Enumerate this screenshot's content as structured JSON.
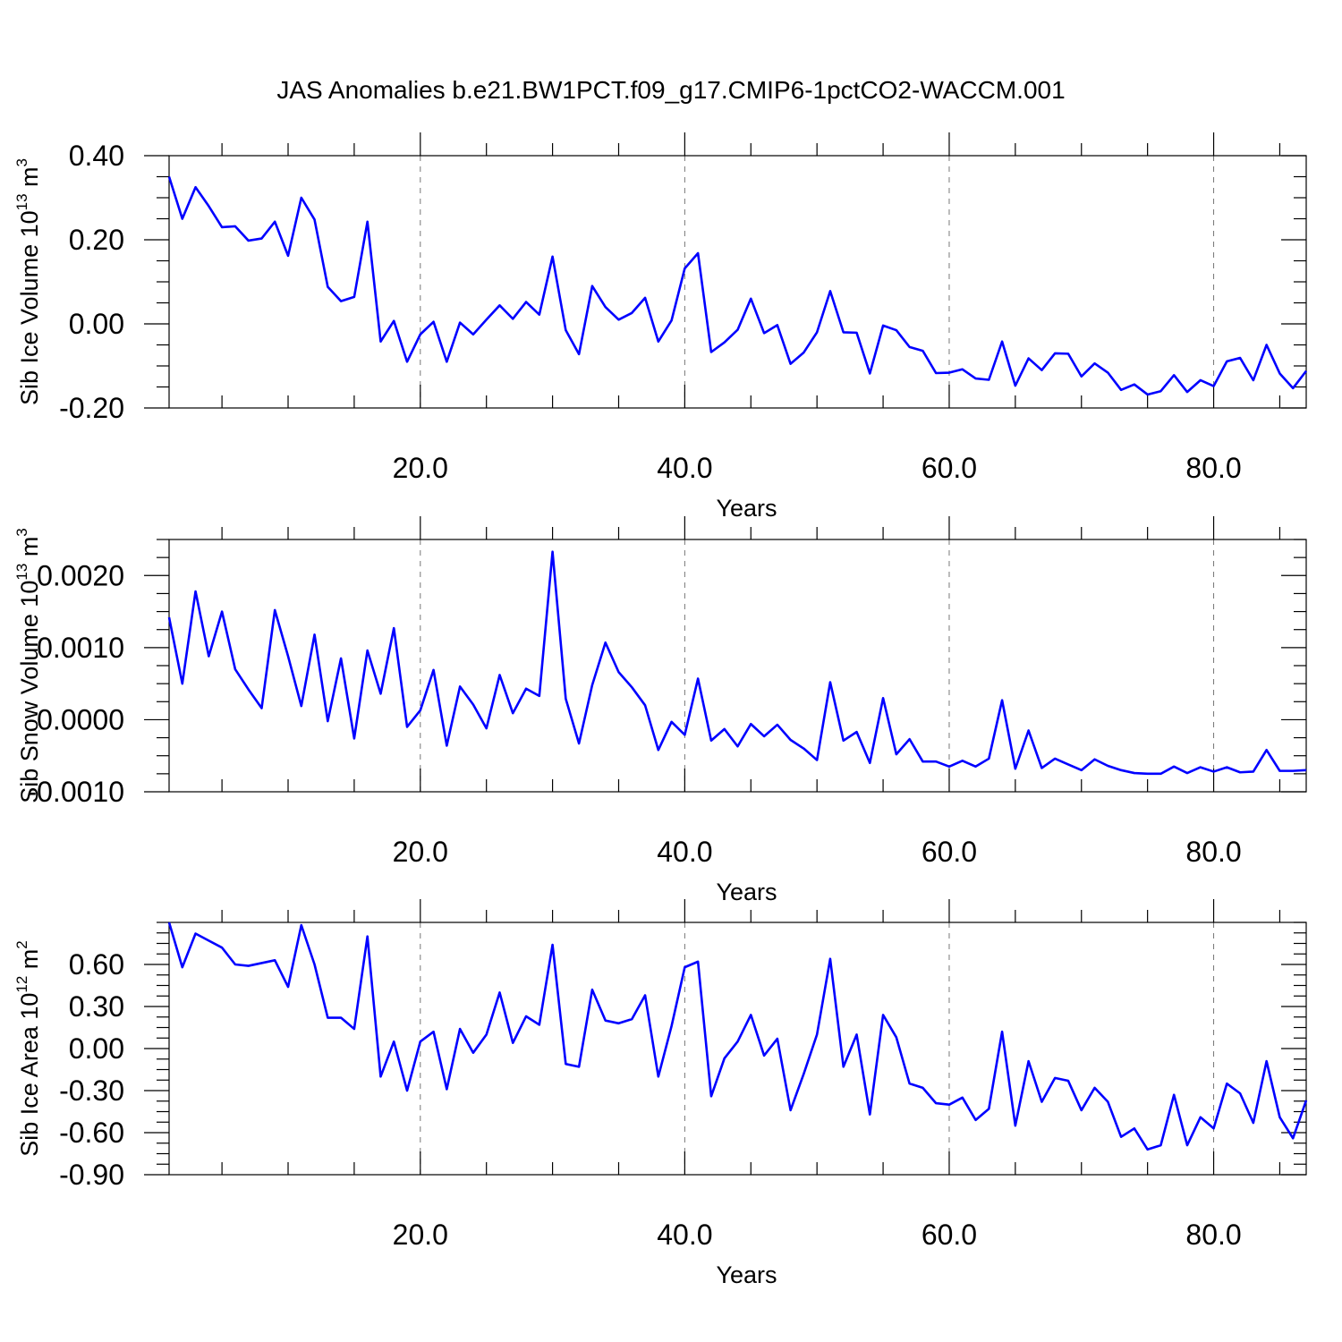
{
  "title": "JAS Anomalies b.e21.BW1PCT.f09_g17.CMIP6-1pctCO2-WACCM.001",
  "chart_data": [
    {
      "type": "line",
      "ylabel_parts": [
        "Sib Ice Volume 10",
        "13",
        " m",
        "3"
      ],
      "xlabel": "Years",
      "xlim": [
        1,
        87
      ],
      "ylim": [
        -0.2,
        0.4
      ],
      "xticks": [
        20,
        40,
        60,
        80
      ],
      "xtick_labels": [
        "20.0",
        "40.0",
        "60.0",
        "80.0"
      ],
      "yticks": [
        -0.2,
        0.0,
        0.2,
        0.4
      ],
      "ytick_labels": [
        "-0.20",
        "0.00",
        "0.20",
        "0.40"
      ],
      "grid": "x-dashed",
      "color": "#0000ff",
      "x_start": 1,
      "values": [
        0.35,
        0.25,
        0.325,
        0.28,
        0.23,
        0.232,
        0.198,
        0.203,
        0.243,
        0.162,
        0.3,
        0.248,
        0.088,
        0.054,
        0.064,
        0.243,
        -0.042,
        0.007,
        -0.09,
        -0.025,
        0.005,
        -0.09,
        0.003,
        -0.025,
        0.01,
        0.044,
        0.012,
        0.052,
        0.022,
        0.16,
        -0.015,
        -0.072,
        0.09,
        0.04,
        0.01,
        0.026,
        0.062,
        -0.042,
        0.008,
        0.132,
        0.168,
        -0.067,
        -0.044,
        -0.014,
        0.06,
        -0.022,
        -0.003,
        -0.095,
        -0.068,
        -0.02,
        0.078,
        -0.02,
        -0.021,
        -0.118,
        -0.004,
        -0.015,
        -0.055,
        -0.064,
        -0.117,
        -0.116,
        -0.108,
        -0.13,
        -0.133,
        -0.042,
        -0.147,
        -0.082,
        -0.11,
        -0.07,
        -0.071,
        -0.125,
        -0.094,
        -0.116,
        -0.157,
        -0.144,
        -0.168,
        -0.16,
        -0.122,
        -0.162,
        -0.134,
        -0.148,
        -0.089,
        -0.081,
        -0.134,
        -0.05,
        -0.118,
        -0.153,
        -0.112
      ]
    },
    {
      "type": "line",
      "ylabel_parts": [
        "Sib Snow Volume 10",
        "13",
        " m",
        "3"
      ],
      "xlabel": "Years",
      "xlim": [
        1,
        87
      ],
      "ylim": [
        -0.001,
        0.0025
      ],
      "xticks": [
        20,
        40,
        60,
        80
      ],
      "xtick_labels": [
        "20.0",
        "40.0",
        "60.0",
        "80.0"
      ],
      "yticks": [
        -0.001,
        0.0,
        0.001,
        0.002
      ],
      "ytick_labels": [
        "-0.0010",
        "0.0000",
        "0.0010",
        "0.0020"
      ],
      "grid": "x-dashed",
      "color": "#0000ff",
      "x_start": 1,
      "values": [
        0.00142,
        0.0005,
        0.00178,
        0.00088,
        0.0015,
        0.0007,
        0.00042,
        0.00016,
        0.00152,
        0.00088,
        0.00019,
        0.00118,
        -2e-05,
        0.00085,
        -0.00026,
        0.00096,
        0.00036,
        0.00127,
        -0.0001,
        0.00013,
        0.00069,
        -0.00036,
        0.00046,
        0.00021,
        -0.00012,
        0.00062,
        9e-05,
        0.00043,
        0.00033,
        0.00233,
        0.00029,
        -0.00033,
        0.00048,
        0.00107,
        0.00066,
        0.00045,
        0.0002,
        -0.00042,
        -3e-05,
        -0.00021,
        0.00057,
        -0.00029,
        -0.00013,
        -0.00037,
        -6e-05,
        -0.00023,
        -7e-05,
        -0.00028,
        -0.0004,
        -0.00056,
        0.00052,
        -0.00029,
        -0.00017,
        -0.0006,
        0.0003,
        -0.00048,
        -0.00027,
        -0.00058,
        -0.00058,
        -0.00065,
        -0.00057,
        -0.00065,
        -0.00054,
        0.00027,
        -0.00068,
        -0.00015,
        -0.00067,
        -0.00054,
        -0.00062,
        -0.0007,
        -0.00055,
        -0.00064,
        -0.0007,
        -0.00074,
        -0.00075,
        -0.00075,
        -0.00065,
        -0.00074,
        -0.00066,
        -0.00072,
        -0.00066,
        -0.00073,
        -0.00072,
        -0.00042,
        -0.00071,
        -0.00071,
        -0.0007
      ]
    },
    {
      "type": "line",
      "ylabel_parts": [
        "Sib Ice Area 10",
        "12",
        " m",
        "2"
      ],
      "xlabel": "Years",
      "xlim": [
        1,
        87
      ],
      "ylim": [
        -0.9,
        0.9
      ],
      "xticks": [
        20,
        40,
        60,
        80
      ],
      "xtick_labels": [
        "20.0",
        "40.0",
        "60.0",
        "80.0"
      ],
      "yticks": [
        -0.9,
        -0.6,
        -0.3,
        0.0,
        0.3,
        0.6
      ],
      "ytick_labels": [
        "-0.90",
        "-0.60",
        "-0.30",
        "0.00",
        "0.30",
        "0.60"
      ],
      "grid": "x-dashed",
      "color": "#0000ff",
      "x_start": 1,
      "values": [
        0.9,
        0.58,
        0.82,
        0.77,
        0.72,
        0.6,
        0.59,
        0.61,
        0.63,
        0.44,
        0.88,
        0.6,
        0.22,
        0.22,
        0.14,
        0.8,
        -0.2,
        0.05,
        -0.3,
        0.05,
        0.12,
        -0.29,
        0.14,
        -0.03,
        0.1,
        0.4,
        0.04,
        0.23,
        0.17,
        0.74,
        -0.11,
        -0.13,
        0.42,
        0.2,
        0.18,
        0.21,
        0.38,
        -0.2,
        0.16,
        0.58,
        0.62,
        -0.34,
        -0.07,
        0.05,
        0.24,
        -0.05,
        0.07,
        -0.44,
        -0.18,
        0.1,
        0.64,
        -0.13,
        0.1,
        -0.47,
        0.24,
        0.08,
        -0.25,
        -0.28,
        -0.39,
        -0.4,
        -0.35,
        -0.51,
        -0.43,
        0.12,
        -0.55,
        -0.09,
        -0.38,
        -0.21,
        -0.23,
        -0.44,
        -0.28,
        -0.38,
        -0.63,
        -0.57,
        -0.72,
        -0.69,
        -0.33,
        -0.69,
        -0.49,
        -0.57,
        -0.25,
        -0.32,
        -0.53,
        -0.09,
        -0.49,
        -0.64,
        -0.37
      ]
    }
  ]
}
